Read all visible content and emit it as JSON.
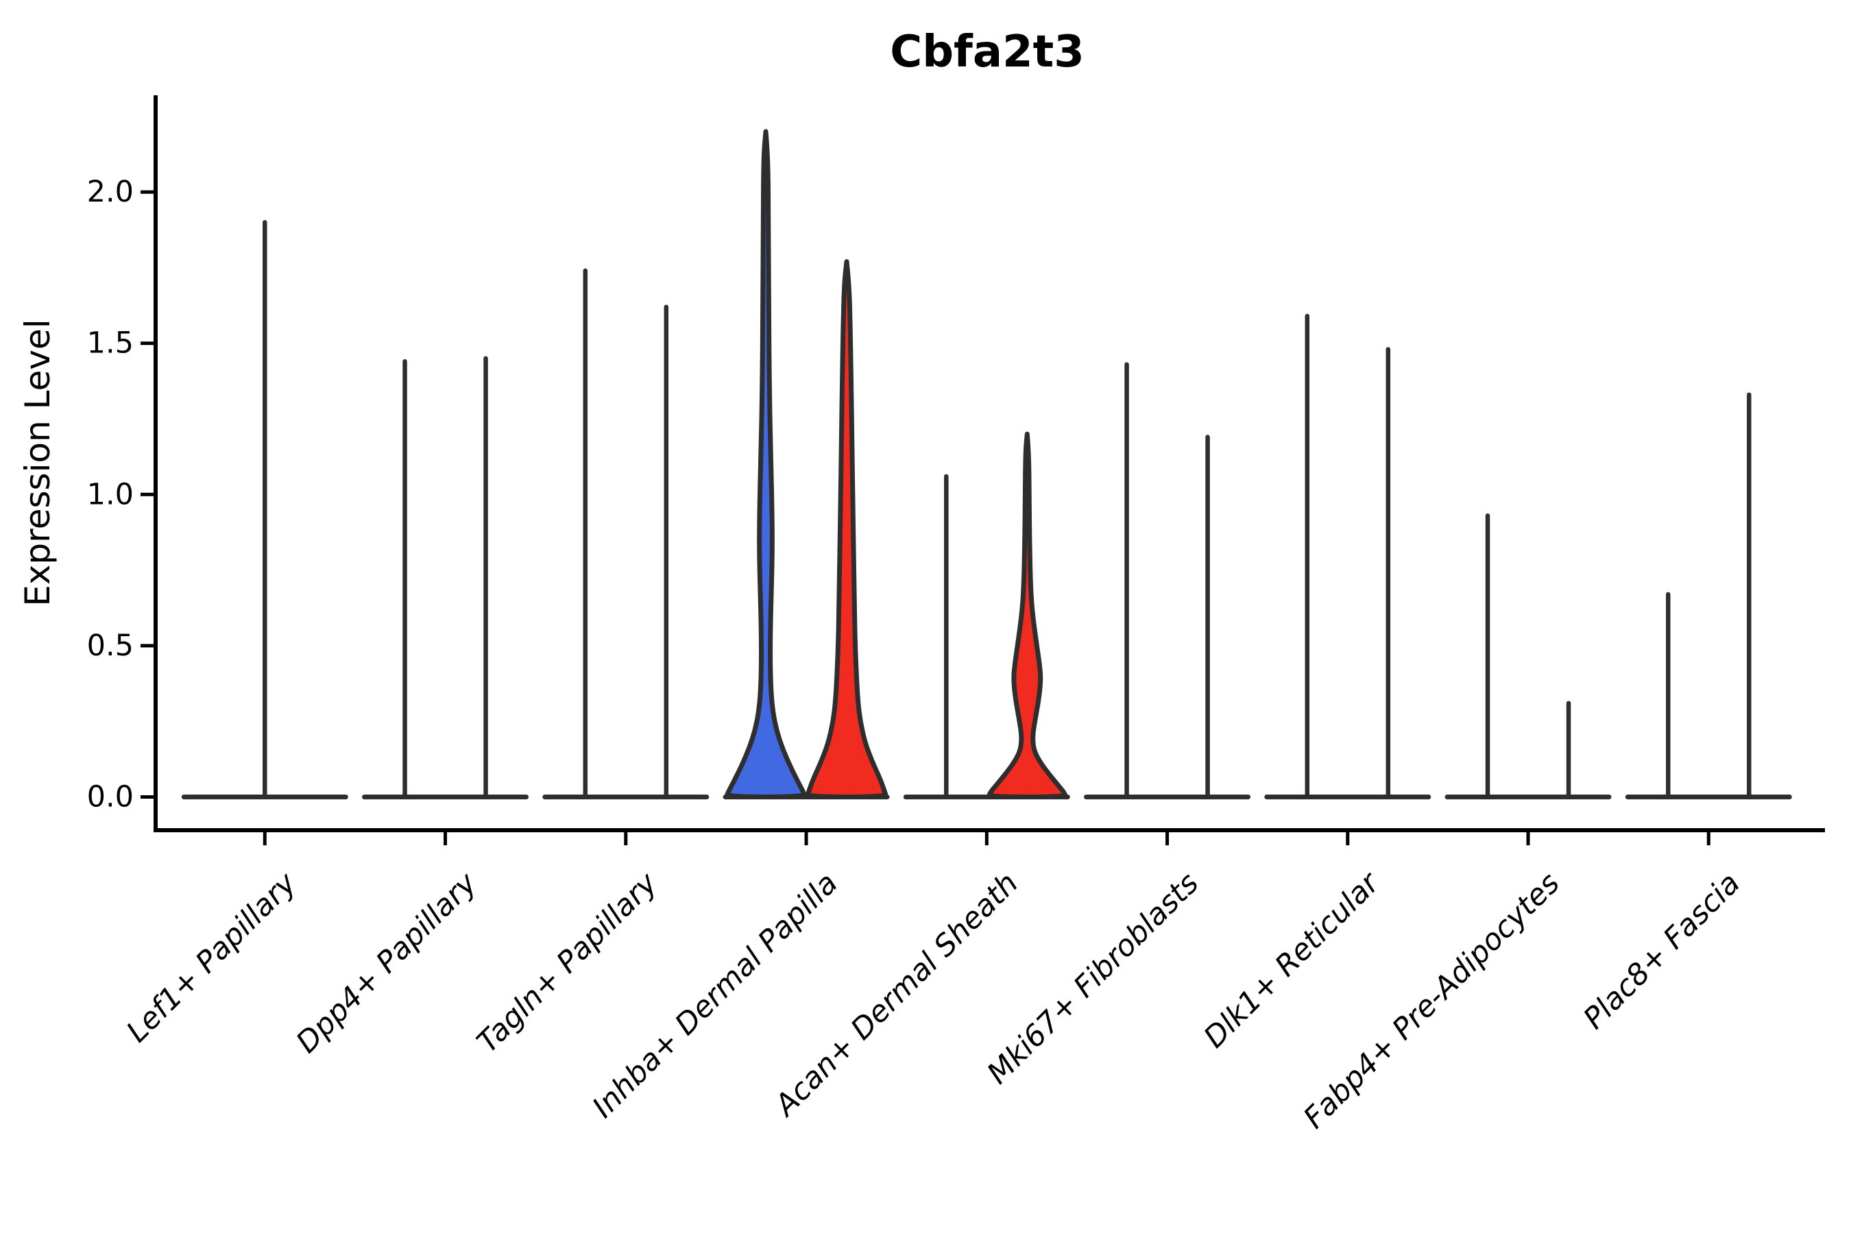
{
  "title": "Cbfa2t3",
  "axes": {
    "ylabel": "Expression Level",
    "ytick_labels": [
      "0.0",
      "0.5",
      "1.0",
      "1.5",
      "2.0"
    ]
  },
  "chart_data": {
    "type": "violin",
    "title": "Cbfa2t3",
    "ylabel": "Expression Level",
    "xlabel": "",
    "yticks": [
      0.0,
      0.5,
      1.0,
      1.5,
      2.0
    ],
    "ylim": [
      -0.11,
      2.32
    ],
    "grid": false,
    "legend": "none",
    "categories": [
      "Lef1+ Papillary",
      "Dpp4+ Papillary",
      "Tagln+ Papillary",
      "Inhba+ Dermal Papilla",
      "Acan+ Dermal Sheath",
      "Mki67+ Fibroblasts",
      "Dlk1+ Reticular",
      "Fabp4+ Pre-Adipocytes",
      "Plac8+ Fascia"
    ],
    "colors": {
      "violin_blue": "#4169E1",
      "violin_red": "#F22B21",
      "line": "#2E2E2E",
      "axis": "#000000",
      "background": "#FFFFFF"
    },
    "violins": [
      {
        "category": 0,
        "position": "center",
        "style": "spike",
        "max": 1.9,
        "fill": "none"
      },
      {
        "category": 1,
        "position": "left",
        "style": "spike",
        "max": 1.44,
        "fill": "none"
      },
      {
        "category": 1,
        "position": "right",
        "style": "spike",
        "max": 1.45,
        "fill": "none"
      },
      {
        "category": 2,
        "position": "left",
        "style": "spike",
        "max": 1.74,
        "fill": "none"
      },
      {
        "category": 2,
        "position": "right",
        "style": "spike",
        "max": 1.62,
        "fill": "none"
      },
      {
        "category": 3,
        "position": "left",
        "style": "violin",
        "max": 2.2,
        "fill": "violin_blue",
        "profile": "inhba_left"
      },
      {
        "category": 3,
        "position": "right",
        "style": "violin",
        "max": 1.77,
        "fill": "violin_red",
        "profile": "inhba_right"
      },
      {
        "category": 4,
        "position": "left",
        "style": "spike",
        "max": 1.06,
        "fill": "none"
      },
      {
        "category": 4,
        "position": "right",
        "style": "violin",
        "max": 1.2,
        "fill": "violin_red",
        "profile": "acan_right"
      },
      {
        "category": 5,
        "position": "left",
        "style": "spike",
        "max": 1.43,
        "fill": "none"
      },
      {
        "category": 5,
        "position": "right",
        "style": "spike",
        "max": 1.19,
        "fill": "none"
      },
      {
        "category": 6,
        "position": "left",
        "style": "spike",
        "max": 1.59,
        "fill": "none"
      },
      {
        "category": 6,
        "position": "right",
        "style": "spike",
        "max": 1.48,
        "fill": "none"
      },
      {
        "category": 7,
        "position": "left",
        "style": "spike",
        "max": 0.93,
        "fill": "none"
      },
      {
        "category": 7,
        "position": "right",
        "style": "spike",
        "max": 0.31,
        "fill": "none"
      },
      {
        "category": 8,
        "position": "left",
        "style": "spike",
        "max": 0.67,
        "fill": "none"
      },
      {
        "category": 8,
        "position": "right",
        "style": "spike",
        "max": 1.33,
        "fill": "none"
      }
    ],
    "profiles": {
      "inhba_left": [
        [
          2.2,
          0
        ],
        [
          2.12,
          0.055
        ],
        [
          1.9,
          0.065
        ],
        [
          1.6,
          0.075
        ],
        [
          1.35,
          0.09
        ],
        [
          1.15,
          0.12
        ],
        [
          0.97,
          0.155
        ],
        [
          0.82,
          0.165
        ],
        [
          0.68,
          0.14
        ],
        [
          0.55,
          0.115
        ],
        [
          0.45,
          0.11
        ],
        [
          0.35,
          0.13
        ],
        [
          0.28,
          0.18
        ],
        [
          0.22,
          0.27
        ],
        [
          0.16,
          0.42
        ],
        [
          0.1,
          0.62
        ],
        [
          0.05,
          0.81
        ],
        [
          0.02,
          0.93
        ],
        [
          0.0,
          1.0
        ]
      ],
      "inhba_right": [
        [
          1.77,
          0
        ],
        [
          1.7,
          0.06
        ],
        [
          1.55,
          0.09
        ],
        [
          1.4,
          0.11
        ],
        [
          1.2,
          0.13
        ],
        [
          1.0,
          0.15
        ],
        [
          0.8,
          0.175
        ],
        [
          0.62,
          0.195
        ],
        [
          0.5,
          0.215
        ],
        [
          0.4,
          0.245
        ],
        [
          0.32,
          0.28
        ],
        [
          0.25,
          0.34
        ],
        [
          0.18,
          0.46
        ],
        [
          0.12,
          0.63
        ],
        [
          0.06,
          0.84
        ],
        [
          0.02,
          0.95
        ],
        [
          0.0,
          1.0
        ]
      ],
      "acan_right": [
        [
          1.2,
          0
        ],
        [
          1.14,
          0.04
        ],
        [
          1.0,
          0.05
        ],
        [
          0.85,
          0.06
        ],
        [
          0.72,
          0.08
        ],
        [
          0.62,
          0.12
        ],
        [
          0.52,
          0.22
        ],
        [
          0.44,
          0.31
        ],
        [
          0.39,
          0.345
        ],
        [
          0.33,
          0.3
        ],
        [
          0.27,
          0.22
        ],
        [
          0.22,
          0.155
        ],
        [
          0.19,
          0.14
        ],
        [
          0.155,
          0.17
        ],
        [
          0.12,
          0.3
        ],
        [
          0.08,
          0.52
        ],
        [
          0.04,
          0.77
        ],
        [
          0.015,
          0.93
        ],
        [
          0.0,
          0.97
        ]
      ]
    }
  }
}
